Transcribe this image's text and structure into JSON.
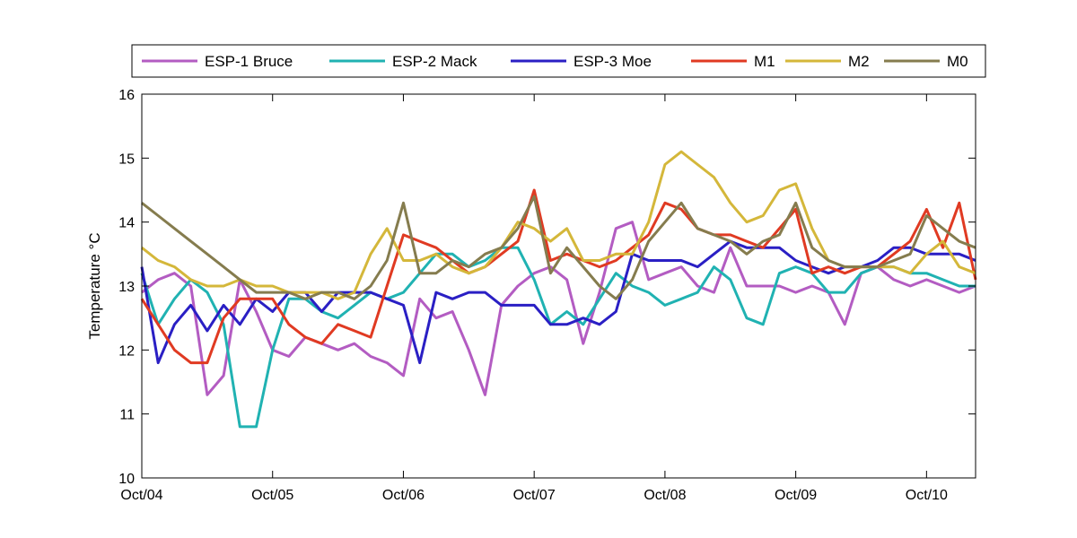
{
  "chart_data": {
    "type": "line",
    "title": "",
    "xlabel": "",
    "ylabel": "Temperature °C",
    "xlim": [
      "2013-10-04",
      "2013-10-10T09:00"
    ],
    "ylim": [
      10,
      16
    ],
    "x_ticks": [
      "Oct/04",
      "Oct/05",
      "Oct/06",
      "Oct/07",
      "Oct/08",
      "Oct/09",
      "Oct/10"
    ],
    "y_ticks": [
      10,
      11,
      12,
      13,
      14,
      15,
      16
    ],
    "grid": false,
    "legend": {
      "placement": "top",
      "orientation": "horizontal"
    },
    "series": [
      {
        "name": "ESP-1 Bruce",
        "color": "#b35cc2",
        "x": [
          "2013-10-04T00:00",
          "2013-10-04T03:00",
          "2013-10-04T06:00",
          "2013-10-04T09:00",
          "2013-10-04T12:00",
          "2013-10-04T15:00",
          "2013-10-04T18:00",
          "2013-10-04T21:00",
          "2013-10-05T00:00",
          "2013-10-05T03:00",
          "2013-10-05T06:00",
          "2013-10-05T09:00",
          "2013-10-05T12:00",
          "2013-10-05T15:00",
          "2013-10-05T18:00",
          "2013-10-05T21:00",
          "2013-10-06T00:00",
          "2013-10-06T03:00",
          "2013-10-06T06:00",
          "2013-10-06T09:00",
          "2013-10-06T12:00",
          "2013-10-06T15:00",
          "2013-10-06T18:00",
          "2013-10-06T21:00",
          "2013-10-07T00:00",
          "2013-10-07T03:00",
          "2013-10-07T06:00",
          "2013-10-07T09:00",
          "2013-10-07T12:00",
          "2013-10-07T15:00",
          "2013-10-07T18:00",
          "2013-10-07T21:00",
          "2013-10-08T00:00",
          "2013-10-08T03:00",
          "2013-10-08T06:00",
          "2013-10-08T09:00",
          "2013-10-08T12:00",
          "2013-10-08T15:00",
          "2013-10-08T18:00",
          "2013-10-08T21:00",
          "2013-10-09T00:00",
          "2013-10-09T03:00",
          "2013-10-09T06:00",
          "2013-10-09T09:00",
          "2013-10-09T12:00",
          "2013-10-09T15:00",
          "2013-10-09T18:00",
          "2013-10-09T21:00",
          "2013-10-10T00:00",
          "2013-10-10T03:00",
          "2013-10-10T06:00",
          "2013-10-10T09:00"
        ],
        "y": [
          12.9,
          13.1,
          13.2,
          13.0,
          11.3,
          11.6,
          13.1,
          12.6,
          12.0,
          11.9,
          12.2,
          12.1,
          12.0,
          12.1,
          11.9,
          11.8,
          11.6,
          12.8,
          12.5,
          12.6,
          12.0,
          11.3,
          12.7,
          13.0,
          13.2,
          13.3,
          13.1,
          12.1,
          12.9,
          13.9,
          14.0,
          13.1,
          13.2,
          13.3,
          13.0,
          12.9,
          13.6,
          13.0,
          13.0,
          13.0,
          12.9,
          13.0,
          12.9,
          12.4,
          13.2,
          13.3,
          13.1,
          13.0,
          13.1,
          13.0,
          12.9,
          13.0
        ]
      },
      {
        "name": "ESP-2 Mack",
        "color": "#20b2b2",
        "x": [
          "2013-10-04T00:00",
          "2013-10-04T03:00",
          "2013-10-04T06:00",
          "2013-10-04T09:00",
          "2013-10-04T12:00",
          "2013-10-04T15:00",
          "2013-10-04T18:00",
          "2013-10-04T21:00",
          "2013-10-05T00:00",
          "2013-10-05T03:00",
          "2013-10-05T06:00",
          "2013-10-05T09:00",
          "2013-10-05T12:00",
          "2013-10-05T15:00",
          "2013-10-05T18:00",
          "2013-10-05T21:00",
          "2013-10-06T00:00",
          "2013-10-06T03:00",
          "2013-10-06T06:00",
          "2013-10-06T09:00",
          "2013-10-06T12:00",
          "2013-10-06T15:00",
          "2013-10-06T18:00",
          "2013-10-06T21:00",
          "2013-10-07T00:00",
          "2013-10-07T03:00",
          "2013-10-07T06:00",
          "2013-10-07T09:00",
          "2013-10-07T12:00",
          "2013-10-07T15:00",
          "2013-10-07T18:00",
          "2013-10-07T21:00",
          "2013-10-08T00:00",
          "2013-10-08T03:00",
          "2013-10-08T06:00",
          "2013-10-08T09:00",
          "2013-10-08T12:00",
          "2013-10-08T15:00",
          "2013-10-08T18:00",
          "2013-10-08T21:00",
          "2013-10-09T00:00",
          "2013-10-09T03:00",
          "2013-10-09T06:00",
          "2013-10-09T09:00",
          "2013-10-09T12:00",
          "2013-10-09T15:00",
          "2013-10-09T18:00",
          "2013-10-09T21:00",
          "2013-10-10T00:00",
          "2013-10-10T03:00",
          "2013-10-10T06:00",
          "2013-10-10T09:00"
        ],
        "y": [
          13.2,
          12.4,
          12.8,
          13.1,
          12.9,
          12.4,
          10.8,
          10.8,
          12.0,
          12.8,
          12.8,
          12.6,
          12.5,
          12.7,
          12.9,
          12.8,
          12.9,
          13.2,
          13.5,
          13.5,
          13.3,
          13.4,
          13.6,
          13.6,
          13.1,
          12.4,
          12.6,
          12.4,
          12.8,
          13.2,
          13.0,
          12.9,
          12.7,
          12.8,
          12.9,
          13.3,
          13.1,
          12.5,
          12.4,
          13.2,
          13.3,
          13.2,
          12.9,
          12.9,
          13.2,
          13.3,
          13.3,
          13.2,
          13.2,
          13.1,
          13.0,
          13.0
        ]
      },
      {
        "name": "ESP-3 Moe",
        "color": "#2a1fc4",
        "x": [
          "2013-10-04T00:00",
          "2013-10-04T03:00",
          "2013-10-04T06:00",
          "2013-10-04T09:00",
          "2013-10-04T12:00",
          "2013-10-04T15:00",
          "2013-10-04T18:00",
          "2013-10-04T21:00",
          "2013-10-05T00:00",
          "2013-10-05T03:00",
          "2013-10-05T06:00",
          "2013-10-05T09:00",
          "2013-10-05T12:00",
          "2013-10-05T15:00",
          "2013-10-05T18:00",
          "2013-10-05T21:00",
          "2013-10-06T00:00",
          "2013-10-06T03:00",
          "2013-10-06T06:00",
          "2013-10-06T09:00",
          "2013-10-06T12:00",
          "2013-10-06T15:00",
          "2013-10-06T18:00",
          "2013-10-06T21:00",
          "2013-10-07T00:00",
          "2013-10-07T03:00",
          "2013-10-07T06:00",
          "2013-10-07T09:00",
          "2013-10-07T12:00",
          "2013-10-07T15:00",
          "2013-10-07T18:00",
          "2013-10-07T21:00",
          "2013-10-08T00:00",
          "2013-10-08T03:00",
          "2013-10-08T06:00",
          "2013-10-08T09:00",
          "2013-10-08T12:00",
          "2013-10-08T15:00",
          "2013-10-08T18:00",
          "2013-10-08T21:00",
          "2013-10-09T00:00",
          "2013-10-09T03:00",
          "2013-10-09T06:00",
          "2013-10-09T09:00",
          "2013-10-09T12:00",
          "2013-10-09T15:00",
          "2013-10-09T18:00",
          "2013-10-09T21:00",
          "2013-10-10T00:00",
          "2013-10-10T03:00",
          "2013-10-10T06:00",
          "2013-10-10T09:00"
        ],
        "y": [
          13.3,
          11.8,
          12.4,
          12.7,
          12.3,
          12.7,
          12.4,
          12.8,
          12.6,
          12.9,
          12.9,
          12.6,
          12.9,
          12.9,
          12.9,
          12.8,
          12.7,
          11.8,
          12.9,
          12.8,
          12.9,
          12.9,
          12.7,
          12.7,
          12.7,
          12.4,
          12.4,
          12.5,
          12.4,
          12.6,
          13.5,
          13.4,
          13.4,
          13.4,
          13.3,
          13.5,
          13.7,
          13.6,
          13.6,
          13.6,
          13.4,
          13.3,
          13.2,
          13.3,
          13.3,
          13.4,
          13.6,
          13.6,
          13.5,
          13.5,
          13.5,
          13.4
        ]
      },
      {
        "name": "M1",
        "color": "#e03a22",
        "x": [
          "2013-10-04T00:00",
          "2013-10-04T03:00",
          "2013-10-04T06:00",
          "2013-10-04T09:00",
          "2013-10-04T12:00",
          "2013-10-04T15:00",
          "2013-10-04T18:00",
          "2013-10-04T21:00",
          "2013-10-05T00:00",
          "2013-10-05T03:00",
          "2013-10-05T06:00",
          "2013-10-05T09:00",
          "2013-10-05T12:00",
          "2013-10-05T15:00",
          "2013-10-05T18:00",
          "2013-10-05T21:00",
          "2013-10-06T00:00",
          "2013-10-06T03:00",
          "2013-10-06T06:00",
          "2013-10-06T09:00",
          "2013-10-06T12:00",
          "2013-10-06T15:00",
          "2013-10-06T18:00",
          "2013-10-06T21:00",
          "2013-10-07T00:00",
          "2013-10-07T03:00",
          "2013-10-07T06:00",
          "2013-10-07T09:00",
          "2013-10-07T12:00",
          "2013-10-07T15:00",
          "2013-10-07T18:00",
          "2013-10-07T21:00",
          "2013-10-08T00:00",
          "2013-10-08T03:00",
          "2013-10-08T06:00",
          "2013-10-08T09:00",
          "2013-10-08T12:00",
          "2013-10-08T15:00",
          "2013-10-08T18:00",
          "2013-10-08T21:00",
          "2013-10-09T00:00",
          "2013-10-09T03:00",
          "2013-10-09T06:00",
          "2013-10-09T09:00",
          "2013-10-09T12:00",
          "2013-10-09T15:00",
          "2013-10-09T18:00",
          "2013-10-09T21:00",
          "2013-10-10T00:00",
          "2013-10-10T03:00",
          "2013-10-10T06:00",
          "2013-10-10T09:00"
        ],
        "y": [
          12.8,
          12.4,
          12.0,
          11.8,
          11.8,
          12.5,
          12.8,
          12.8,
          12.8,
          12.4,
          12.2,
          12.1,
          12.4,
          12.3,
          12.2,
          13.0,
          13.8,
          13.7,
          13.6,
          13.4,
          13.2,
          13.3,
          13.5,
          13.7,
          14.5,
          13.4,
          13.5,
          13.4,
          13.3,
          13.4,
          13.6,
          13.8,
          14.3,
          14.2,
          13.9,
          13.8,
          13.8,
          13.7,
          13.6,
          13.9,
          14.2,
          13.2,
          13.3,
          13.2,
          13.3,
          13.3,
          13.5,
          13.7,
          14.2,
          13.6,
          14.3,
          13.1
        ]
      },
      {
        "name": "M2",
        "color": "#d4b73a",
        "x": [
          "2013-10-04T00:00",
          "2013-10-04T03:00",
          "2013-10-04T06:00",
          "2013-10-04T09:00",
          "2013-10-04T12:00",
          "2013-10-04T15:00",
          "2013-10-04T18:00",
          "2013-10-04T21:00",
          "2013-10-05T00:00",
          "2013-10-05T03:00",
          "2013-10-05T06:00",
          "2013-10-05T09:00",
          "2013-10-05T12:00",
          "2013-10-05T15:00",
          "2013-10-05T18:00",
          "2013-10-05T21:00",
          "2013-10-06T00:00",
          "2013-10-06T03:00",
          "2013-10-06T06:00",
          "2013-10-06T09:00",
          "2013-10-06T12:00",
          "2013-10-06T15:00",
          "2013-10-06T18:00",
          "2013-10-06T21:00",
          "2013-10-07T00:00",
          "2013-10-07T03:00",
          "2013-10-07T06:00",
          "2013-10-07T09:00",
          "2013-10-07T12:00",
          "2013-10-07T15:00",
          "2013-10-07T18:00",
          "2013-10-07T21:00",
          "2013-10-08T00:00",
          "2013-10-08T03:00",
          "2013-10-08T06:00",
          "2013-10-08T09:00",
          "2013-10-08T12:00",
          "2013-10-08T15:00",
          "2013-10-08T18:00",
          "2013-10-08T21:00",
          "2013-10-09T00:00",
          "2013-10-09T03:00",
          "2013-10-09T06:00",
          "2013-10-09T09:00",
          "2013-10-09T12:00",
          "2013-10-09T15:00",
          "2013-10-09T18:00",
          "2013-10-09T21:00",
          "2013-10-10T00:00",
          "2013-10-10T03:00",
          "2013-10-10T06:00",
          "2013-10-10T09:00"
        ],
        "y": [
          13.6,
          13.4,
          13.3,
          13.1,
          13.0,
          13.0,
          13.1,
          13.0,
          13.0,
          12.9,
          12.9,
          12.9,
          12.8,
          12.9,
          13.5,
          13.9,
          13.4,
          13.4,
          13.5,
          13.3,
          13.2,
          13.3,
          13.6,
          14.0,
          13.9,
          13.7,
          13.9,
          13.4,
          13.4,
          13.5,
          13.5,
          14.0,
          14.9,
          15.1,
          14.9,
          14.7,
          14.3,
          14.0,
          14.1,
          14.5,
          14.6,
          13.9,
          13.4,
          13.3,
          13.3,
          13.3,
          13.3,
          13.2,
          13.5,
          13.7,
          13.3,
          13.2
        ]
      },
      {
        "name": "M0",
        "color": "#857c4e",
        "x": [
          "2013-10-04T00:00",
          "2013-10-04T03:00",
          "2013-10-04T06:00",
          "2013-10-04T09:00",
          "2013-10-04T12:00",
          "2013-10-04T15:00",
          "2013-10-04T18:00",
          "2013-10-04T21:00",
          "2013-10-05T00:00",
          "2013-10-05T03:00",
          "2013-10-05T06:00",
          "2013-10-05T09:00",
          "2013-10-05T12:00",
          "2013-10-05T15:00",
          "2013-10-05T18:00",
          "2013-10-05T21:00",
          "2013-10-06T00:00",
          "2013-10-06T03:00",
          "2013-10-06T06:00",
          "2013-10-06T09:00",
          "2013-10-06T12:00",
          "2013-10-06T15:00",
          "2013-10-06T18:00",
          "2013-10-06T21:00",
          "2013-10-07T00:00",
          "2013-10-07T03:00",
          "2013-10-07T06:00",
          "2013-10-07T09:00",
          "2013-10-07T12:00",
          "2013-10-07T15:00",
          "2013-10-07T18:00",
          "2013-10-07T21:00",
          "2013-10-08T00:00",
          "2013-10-08T03:00",
          "2013-10-08T06:00",
          "2013-10-08T09:00",
          "2013-10-08T12:00",
          "2013-10-08T15:00",
          "2013-10-08T18:00",
          "2013-10-08T21:00",
          "2013-10-09T00:00",
          "2013-10-09T03:00",
          "2013-10-09T06:00",
          "2013-10-09T09:00",
          "2013-10-09T12:00",
          "2013-10-09T15:00",
          "2013-10-09T18:00",
          "2013-10-09T21:00",
          "2013-10-10T00:00",
          "2013-10-10T03:00",
          "2013-10-10T06:00",
          "2013-10-10T09:00"
        ],
        "y": [
          14.3,
          14.1,
          13.9,
          13.7,
          13.5,
          13.3,
          13.1,
          12.9,
          12.9,
          12.9,
          12.8,
          12.9,
          12.9,
          12.8,
          13.0,
          13.4,
          14.3,
          13.2,
          13.2,
          13.4,
          13.3,
          13.5,
          13.6,
          13.9,
          14.4,
          13.2,
          13.6,
          13.3,
          13.0,
          12.8,
          13.1,
          13.7,
          14.0,
          14.3,
          13.9,
          13.8,
          13.7,
          13.5,
          13.7,
          13.8,
          14.3,
          13.6,
          13.4,
          13.3,
          13.3,
          13.3,
          13.4,
          13.5,
          14.1,
          13.9,
          13.7,
          13.6
        ]
      }
    ]
  }
}
